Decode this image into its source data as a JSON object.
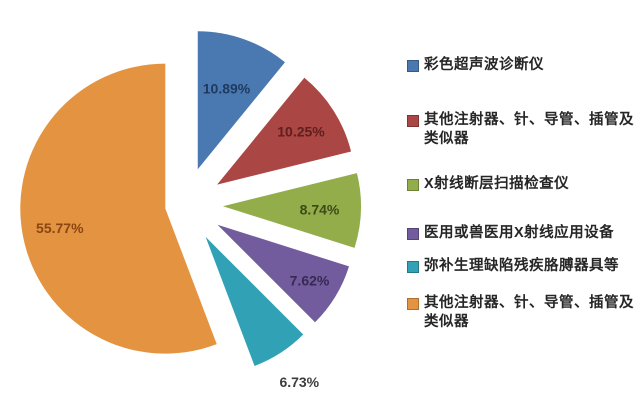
{
  "chart_data": {
    "type": "pie",
    "style": "exploded",
    "title": "",
    "background": "#ffffff",
    "legend_position": "right",
    "total": 100,
    "slices": [
      {
        "label": "彩色超声波诊断仪",
        "value": 10.89,
        "percent_label": "10.89%",
        "color": "#4a79b2",
        "percent_label_color": "#1e3a5f"
      },
      {
        "label": "其他注射器、针、导管、插管及类似器",
        "value": 10.25,
        "percent_label": "10.25%",
        "color": "#aa4643",
        "percent_label_color": "#5e1f1d"
      },
      {
        "label": "X射线断层扫描检查仪",
        "value": 8.74,
        "percent_label": "8.74%",
        "color": "#93ad4b",
        "percent_label_color": "#3d4a16"
      },
      {
        "label": "医用或兽医用X射线应用设备",
        "value": 7.62,
        "percent_label": "7.62%",
        "color": "#725c9e",
        "percent_label_color": "#362a52"
      },
      {
        "label": "弥补生理缺陷残疾胳膊器具等",
        "value": 6.73,
        "percent_label": "6.73%",
        "color": "#31a1b6",
        "percent_label_color": "#3d3d3d"
      },
      {
        "label": "其他注射器、针、导管、插管及类似器",
        "value": 55.77,
        "percent_label": "55.77%",
        "color": "#e49440",
        "percent_label_color": "#8a4513"
      }
    ]
  }
}
